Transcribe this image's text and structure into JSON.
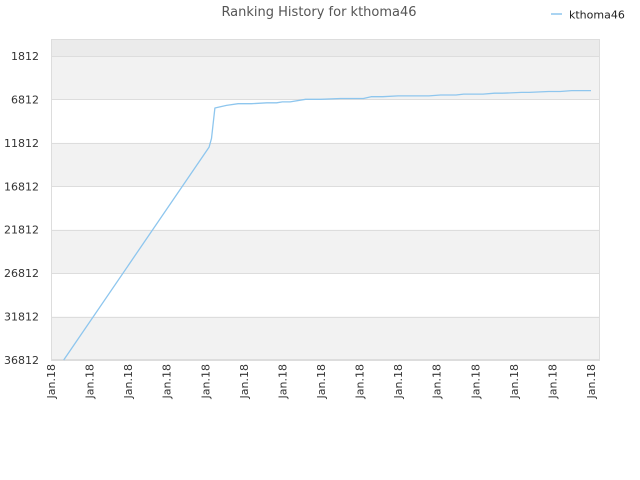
{
  "chart_data": {
    "type": "line",
    "title": "Ranking History for kthoma46",
    "xlabel": "",
    "ylabel": "",
    "y_inverted": true,
    "ylim": [
      1812,
      36812
    ],
    "y_ticks": [
      1812,
      6812,
      11812,
      16812,
      21812,
      26812,
      31812,
      36812
    ],
    "x_tick_labels": [
      "Jan.18",
      "Jan.18",
      "Jan.18",
      "Jan.18",
      "Jan.18",
      "Jan.18",
      "Jan.18",
      "Jan.18",
      "Jan.18",
      "Jan.18",
      "Jan.18",
      "Jan.18",
      "Jan.18",
      "Jan.18",
      "Jan.18"
    ],
    "grid": true,
    "legend": "top-right",
    "colors": {
      "series": "#8ec6ee",
      "band": "#f2f2f2",
      "top_band": "#ebebeb",
      "grid": "#dddddd"
    },
    "series": [
      {
        "name": "kthoma46",
        "x": [
          0.33,
          4.1,
          4.16,
          4.25,
          4.55,
          4.85,
          5.2,
          5.6,
          5.85,
          6.0,
          6.2,
          6.6,
          6.9,
          7.0,
          7.5,
          7.8,
          8.1,
          8.3,
          8.6,
          9.0,
          9.5,
          9.8,
          10.1,
          10.5,
          10.7,
          11.2,
          11.5,
          11.7,
          12.2,
          12.4,
          12.9,
          13.2,
          13.5,
          14.0
        ],
        "y": [
          36812,
          12300,
          11300,
          7800,
          7500,
          7300,
          7300,
          7200,
          7200,
          7100,
          7100,
          6800,
          6800,
          6800,
          6700,
          6700,
          6700,
          6500,
          6500,
          6400,
          6400,
          6400,
          6300,
          6300,
          6200,
          6200,
          6100,
          6100,
          6000,
          6000,
          5900,
          5900,
          5800,
          5800
        ]
      }
    ]
  }
}
